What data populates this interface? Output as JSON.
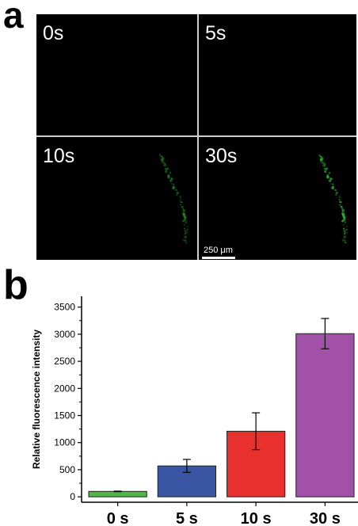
{
  "panel_a": {
    "letter": "a",
    "tiles": [
      {
        "label": "0s",
        "signal": 0
      },
      {
        "label": "5s",
        "signal": 0.02
      },
      {
        "label": "10s",
        "signal": 0.4
      },
      {
        "label": "30s",
        "signal": 1
      }
    ],
    "scale_bar": "250 μm"
  },
  "panel_b": {
    "letter": "b"
  },
  "colors": {
    "fluorescence": "#2fbf2f",
    "bar_0s": "#4cb84c",
    "bar_5s": "#3b55a5",
    "bar_10s": "#e8312f",
    "bar_30s": "#a251a8"
  },
  "chart_data": {
    "type": "bar",
    "categories": [
      "0 s",
      "5 s",
      "10 s",
      "30 s"
    ],
    "values": [
      100,
      570,
      1210,
      3010
    ],
    "errors": [
      5,
      120,
      340,
      280
    ],
    "colors": [
      "#4cb84c",
      "#3b55a5",
      "#e8312f",
      "#a251a8"
    ],
    "ylabel": "Relative fluorescence intensity",
    "xlabel": "",
    "ylim": [
      -100,
      3700
    ],
    "yticks": [
      0,
      500,
      1000,
      1500,
      2000,
      2500,
      3000,
      3500
    ],
    "grid": false,
    "legend": "none"
  }
}
